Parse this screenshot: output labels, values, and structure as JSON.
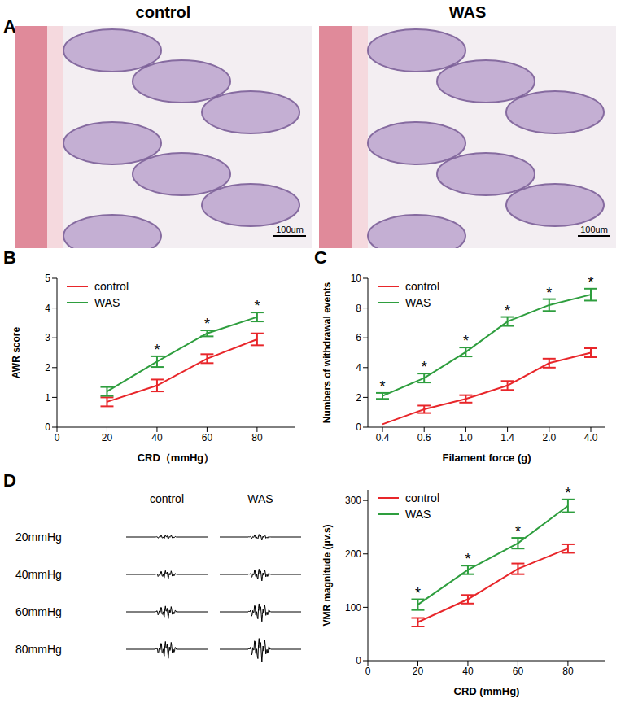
{
  "figure": {
    "A": {
      "panel": "A",
      "titles": [
        "control",
        "WAS"
      ],
      "scale_bar": "100um"
    },
    "D_traces": {
      "panel": "D",
      "columns": [
        "control",
        "WAS"
      ],
      "rows": [
        "20mmHg",
        "40mmHg",
        "60mmHg",
        "80mmHg"
      ]
    }
  },
  "chart_data": [
    {
      "panel": "B",
      "type": "line",
      "x_label": "CRD（mmHg）",
      "y_label": "AWR score",
      "x": [
        20,
        40,
        60,
        80
      ],
      "xlim": [
        0,
        95
      ],
      "xticks": [
        0,
        20,
        40,
        60,
        80
      ],
      "ylim": [
        0,
        5
      ],
      "yticks": [
        0,
        1,
        2,
        3,
        4,
        5
      ],
      "legend": "upper left",
      "series": [
        {
          "name": "control",
          "color": "#e8262a",
          "values": [
            0.85,
            1.4,
            2.3,
            2.95
          ],
          "errors": [
            0.15,
            0.2,
            0.15,
            0.2
          ]
        },
        {
          "name": "WAS",
          "color": "#2e9e3e",
          "values": [
            1.2,
            2.2,
            3.15,
            3.7
          ],
          "errors": [
            0.15,
            0.18,
            0.1,
            0.15
          ]
        }
      ],
      "annotations": [
        {
          "x": 40,
          "text": "*"
        },
        {
          "x": 60,
          "text": "*"
        },
        {
          "x": 80,
          "text": "*"
        }
      ]
    },
    {
      "panel": "C",
      "type": "line",
      "x_label": "Filament force (g)",
      "y_label": "Numbers of withdrawal events",
      "categories": [
        "0.4",
        "0.6",
        "1.0",
        "1.4",
        "2.0",
        "4.0"
      ],
      "ylim": [
        0,
        10
      ],
      "yticks": [
        0,
        2,
        4,
        6,
        8,
        10
      ],
      "legend": "upper left",
      "series": [
        {
          "name": "control",
          "color": "#e8262a",
          "values": [
            0.2,
            1.2,
            1.9,
            2.8,
            4.3,
            5.0
          ],
          "errors": [
            0,
            0.25,
            0.25,
            0.3,
            0.3,
            0.3
          ]
        },
        {
          "name": "WAS",
          "color": "#2e9e3e",
          "values": [
            2.1,
            3.3,
            5.05,
            7.1,
            8.2,
            8.9
          ],
          "errors": [
            0.2,
            0.3,
            0.3,
            0.3,
            0.4,
            0.4
          ]
        }
      ],
      "annotations": [
        {
          "x": "0.4",
          "text": "*"
        },
        {
          "x": "0.6",
          "text": "*"
        },
        {
          "x": "1.0",
          "text": "*"
        },
        {
          "x": "1.4",
          "text": "*"
        },
        {
          "x": "2.0",
          "text": "*"
        },
        {
          "x": "4.0",
          "text": "*"
        }
      ]
    },
    {
      "panel": "D",
      "type": "line",
      "x_label": "CRD (mmHg)",
      "y_label": "VMR magnitude (μv.s)",
      "x": [
        20,
        40,
        60,
        80
      ],
      "xlim": [
        0,
        95
      ],
      "xticks": [
        0,
        20,
        40,
        60,
        80
      ],
      "ylim": [
        0,
        320
      ],
      "yticks": [
        0,
        100,
        200,
        300
      ],
      "legend": "upper left",
      "series": [
        {
          "name": "control",
          "color": "#e8262a",
          "values": [
            72,
            115,
            172,
            210
          ],
          "errors": [
            8,
            8,
            10,
            8
          ]
        },
        {
          "name": "WAS",
          "color": "#2e9e3e",
          "values": [
            105,
            170,
            220,
            290
          ],
          "errors": [
            10,
            8,
            10,
            12
          ]
        }
      ],
      "annotations": [
        {
          "x": 20,
          "text": "*"
        },
        {
          "x": 40,
          "text": "*"
        },
        {
          "x": 60,
          "text": "*"
        },
        {
          "x": 80,
          "text": "*"
        }
      ]
    }
  ]
}
